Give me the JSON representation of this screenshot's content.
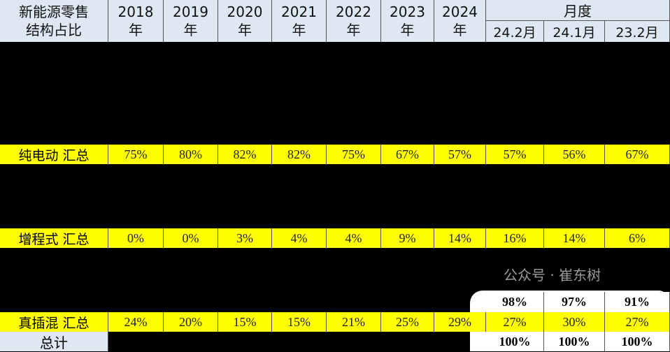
{
  "header": {
    "corner": [
      "新能源零售",
      "结构占比"
    ],
    "years": [
      [
        "2018",
        "年"
      ],
      [
        "2019",
        "年"
      ],
      [
        "2020",
        "年"
      ],
      [
        "2021",
        "年"
      ],
      [
        "2022",
        "年"
      ],
      [
        "2023",
        "年"
      ],
      [
        "2024",
        "年"
      ]
    ],
    "monthly_group": "月度",
    "months": [
      "24.2月",
      "24.1月",
      "23.2月"
    ]
  },
  "rows": [
    {
      "label": "纯电动 汇总",
      "values": [
        "75%",
        "80%",
        "82%",
        "82%",
        "75%",
        "67%",
        "57%",
        "57%",
        "56%",
        "67%"
      ]
    },
    {
      "label": "增程式 汇总",
      "values": [
        "0%",
        "0%",
        "3%",
        "4%",
        "4%",
        "9%",
        "14%",
        "16%",
        "14%",
        "6%"
      ]
    },
    {
      "label": "真插混 汇总",
      "values": [
        "24%",
        "20%",
        "15%",
        "15%",
        "21%",
        "25%",
        "29%",
        "27%",
        "30%",
        "27%"
      ]
    }
  ],
  "partial_row": [
    "98%",
    "97%",
    "91%"
  ],
  "total": {
    "label": "总计",
    "values": [
      "100%",
      "100%",
      "100%"
    ]
  },
  "watermark": "公众号 · 崔东树"
}
